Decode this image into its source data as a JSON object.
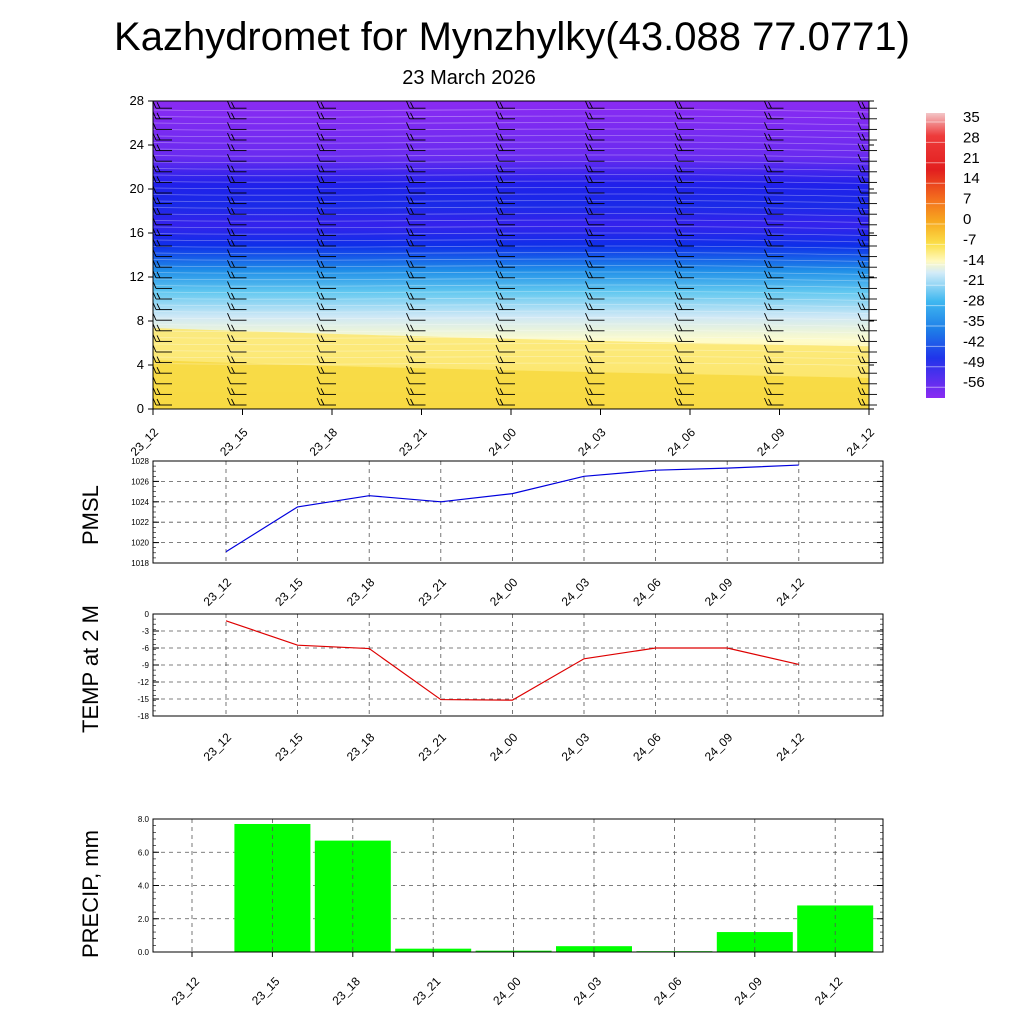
{
  "header": {
    "title": "Kazhydromet for Mynzhylky(43.088 77.0771)",
    "subtitle": "23 March 2026"
  },
  "chart_data": [
    {
      "type": "heatmap",
      "name": "temperature-cross-section",
      "x_labels": [
        "23_12",
        "23_15",
        "23_18",
        "23_21",
        "24_00",
        "24_03",
        "24_06",
        "24_09",
        "24_12"
      ],
      "y_ticks": [
        0,
        4,
        8,
        12,
        16,
        20,
        24,
        28
      ],
      "ylim": [
        0,
        28
      ],
      "colorbar_labels": [
        "35",
        "28",
        "21",
        "14",
        "7",
        "0",
        "-7",
        "-14",
        "-21",
        "-28",
        "-35",
        "-42",
        "-49",
        "-56"
      ],
      "colors": {
        "warm": "#f9df3f",
        "light": "#fffcc4",
        "pale_blue": "#cfe8f6",
        "cyan": "#2fb8ee",
        "blue": "#0e2fe9",
        "violet": "#8a2bf2"
      }
    },
    {
      "type": "line",
      "name": "pmsl",
      "ylabel": "PMSL",
      "x_labels": [
        "23_12",
        "23_15",
        "23_18",
        "23_21",
        "24_00",
        "24_03",
        "24_06",
        "24_09",
        "24_12"
      ],
      "values": [
        1019.1,
        1023.5,
        1024.6,
        1024.0,
        1024.8,
        1026.5,
        1027.1,
        1027.3,
        1027.6
      ],
      "y_ticks": [
        "1018",
        "1020",
        "1022",
        "1024",
        "1026",
        "1028"
      ],
      "ylim": [
        1018,
        1028
      ],
      "color": "#0000dd"
    },
    {
      "type": "line",
      "name": "temp2m",
      "ylabel": "TEMP at 2 M",
      "x_labels": [
        "23_12",
        "23_15",
        "23_18",
        "23_21",
        "24_00",
        "24_03",
        "24_06",
        "24_09",
        "24_12"
      ],
      "values": [
        -1.2,
        -5.5,
        -6.1,
        -15.1,
        -15.2,
        -7.9,
        -6.0,
        -6.0,
        -8.9
      ],
      "y_ticks": [
        "0",
        "-3",
        "-6",
        "-9",
        "-12",
        "-15",
        "-18"
      ],
      "ylim": [
        -18,
        0
      ],
      "color": "#dd0000"
    },
    {
      "type": "bar",
      "name": "precip",
      "ylabel": "PRECIP, mm",
      "x_labels": [
        "23_12",
        "23_15",
        "23_18",
        "23_21",
        "24_00",
        "24_03",
        "24_06",
        "24_09",
        "24_12"
      ],
      "values": [
        0.0,
        7.7,
        6.7,
        0.2,
        0.08,
        0.35,
        0.05,
        1.2,
        2.8
      ],
      "y_ticks": [
        "0.0",
        "2.0",
        "4.0",
        "6.0",
        "8.0"
      ],
      "ylim": [
        0,
        8
      ],
      "color": "#00ff00"
    }
  ]
}
